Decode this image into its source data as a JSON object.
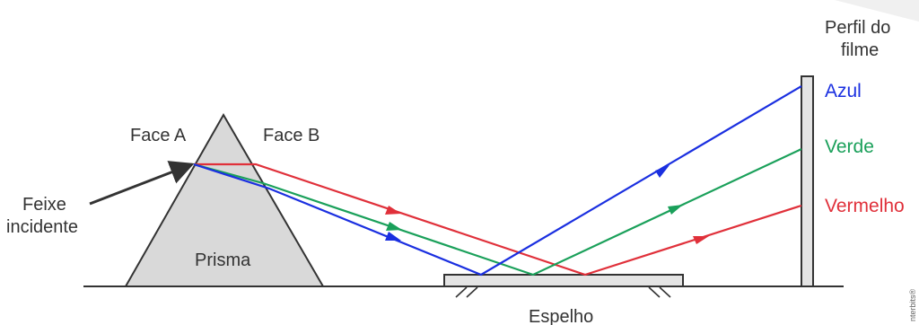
{
  "labels": {
    "face_a": "Face A",
    "face_b": "Face B",
    "feixe_line1": "Feixe",
    "feixe_line2": "incidente",
    "prisma": "Prisma",
    "espelho": "Espelho",
    "perfil_line1": "Perfil do",
    "perfil_line2": "filme",
    "credit": "nterbits®"
  },
  "colors": [
    {
      "name": "Azul",
      "hex": "#1a2fe0"
    },
    {
      "name": "Verde",
      "hex": "#1aa05a"
    },
    {
      "name": "Vermelho",
      "hex": "#e0303a"
    }
  ],
  "palette": {
    "prism_fill": "#d9d9d9",
    "line": "#333333",
    "arrow": "#333333"
  }
}
